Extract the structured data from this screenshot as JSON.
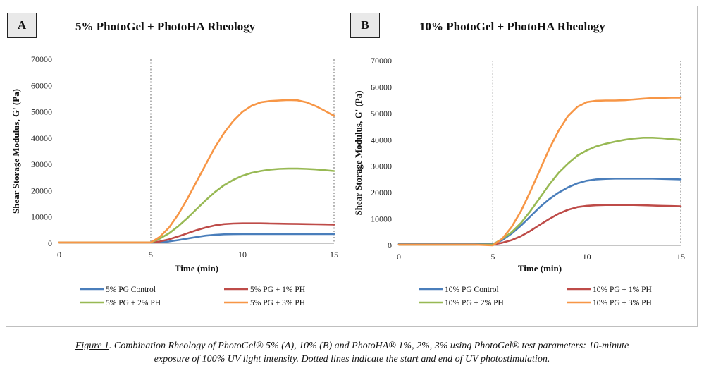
{
  "charts": [
    {
      "id": "A",
      "panel_label": "A",
      "title": "5% PhotoGel + PhotoHA Rheology"
    },
    {
      "id": "B",
      "panel_label": "B",
      "title": "10% PhotoGel + PhotoHA Rheology"
    }
  ],
  "caption": {
    "figure_label": "Figure 1",
    "text_line1": ". Combination Rheology of PhotoGel® 5% (A), 10% (B) and PhotoHA® 1%, 2%, 3% using PhotoGel® test parameters: 10-minute",
    "text_line2": "exposure of 100% UV light intensity. Dotted lines indicate the start and end of UV photostimulation."
  },
  "chart_data": [
    {
      "type": "line",
      "title": "5% PhotoGel + PhotoHA Rheology",
      "xlabel": "Time (min)",
      "ylabel": "Shear Storage Modulus, G' (Pa)",
      "xlim": [
        0,
        15
      ],
      "ylim": [
        0,
        70000
      ],
      "xticks": [
        0,
        5,
        10,
        15
      ],
      "yticks": [
        0,
        10000,
        20000,
        30000,
        40000,
        50000,
        60000,
        70000
      ],
      "vlines": [
        5,
        15
      ],
      "grid": false,
      "legend_position": "bottom",
      "x": [
        0,
        1,
        2,
        3,
        4,
        5,
        5.5,
        6,
        6.5,
        7,
        7.5,
        8,
        8.5,
        9,
        9.5,
        10,
        10.5,
        11,
        11.5,
        12,
        12.5,
        13,
        13.5,
        14,
        14.5,
        15
      ],
      "series": [
        {
          "name": "5% PG Control",
          "color": "#4a7ebb",
          "values": [
            300,
            300,
            300,
            300,
            300,
            300,
            400,
            700,
            1200,
            1800,
            2400,
            2900,
            3200,
            3400,
            3450,
            3500,
            3500,
            3500,
            3500,
            3500,
            3500,
            3500,
            3500,
            3500,
            3500,
            3500
          ]
        },
        {
          "name": "5% PG + 1% PH",
          "color": "#be4b48",
          "values": [
            300,
            300,
            300,
            300,
            300,
            300,
            700,
            1500,
            2600,
            3800,
            5000,
            6000,
            6800,
            7300,
            7500,
            7600,
            7600,
            7600,
            7500,
            7450,
            7400,
            7350,
            7300,
            7250,
            7200,
            7100
          ]
        },
        {
          "name": "5% PG + 2% PH",
          "color": "#98b954",
          "values": [
            300,
            300,
            300,
            300,
            300,
            300,
            1800,
            3800,
            6500,
            9600,
            13000,
            16400,
            19500,
            22100,
            24100,
            25700,
            26800,
            27500,
            28000,
            28300,
            28400,
            28400,
            28300,
            28100,
            27800,
            27500
          ]
        },
        {
          "name": "5% PG + 3% PH",
          "color": "#f79646",
          "values": [
            300,
            300,
            300,
            300,
            300,
            300,
            2500,
            6000,
            11000,
            17000,
            23500,
            30000,
            36500,
            42000,
            46500,
            50000,
            52300,
            53600,
            54100,
            54300,
            54500,
            54400,
            53600,
            52200,
            50400,
            48500
          ]
        }
      ]
    },
    {
      "type": "line",
      "title": "10% PhotoGel + PhotoHA Rheology",
      "xlabel": "Time (min)",
      "ylabel": "Shear Storage Modulus, G' (Pa)",
      "xlim": [
        0,
        15
      ],
      "ylim": [
        0,
        70000
      ],
      "xticks": [
        0,
        5,
        10,
        15
      ],
      "yticks": [
        0,
        10000,
        20000,
        30000,
        40000,
        50000,
        60000,
        70000
      ],
      "vlines": [
        5,
        15
      ],
      "grid": false,
      "legend_position": "bottom",
      "x": [
        0,
        1,
        2,
        3,
        4,
        5,
        5.5,
        6,
        6.5,
        7,
        7.5,
        8,
        8.5,
        9,
        9.5,
        10,
        10.5,
        11,
        11.5,
        12,
        12.5,
        13,
        13.5,
        14,
        14.5,
        15
      ],
      "series": [
        {
          "name": "10% PG Control",
          "color": "#4a7ebb",
          "values": [
            500,
            500,
            500,
            500,
            500,
            500,
            2000,
            4500,
            7500,
            11000,
            14500,
            17500,
            20000,
            22000,
            23500,
            24500,
            25000,
            25200,
            25300,
            25300,
            25300,
            25300,
            25300,
            25200,
            25100,
            25000
          ]
        },
        {
          "name": "10% PG + 1% PH",
          "color": "#be4b48",
          "values": [
            300,
            300,
            300,
            300,
            300,
            300,
            1000,
            2000,
            3500,
            5500,
            7800,
            10000,
            12000,
            13500,
            14500,
            15000,
            15200,
            15300,
            15300,
            15300,
            15300,
            15200,
            15100,
            15000,
            14900,
            14800
          ]
        },
        {
          "name": "10% PG + 2% PH",
          "color": "#98b954",
          "values": [
            300,
            300,
            300,
            300,
            300,
            300,
            2500,
            5000,
            8500,
            13000,
            18000,
            23000,
            27500,
            31000,
            34000,
            36000,
            37500,
            38500,
            39300,
            40000,
            40500,
            40800,
            40800,
            40600,
            40300,
            40000
          ]
        },
        {
          "name": "10% PG + 3% PH",
          "color": "#f79646",
          "values": [
            300,
            300,
            300,
            300,
            300,
            0,
            2500,
            7000,
            13000,
            20500,
            28500,
            36500,
            43500,
            49000,
            52500,
            54300,
            54800,
            54900,
            54900,
            55000,
            55300,
            55600,
            55800,
            55900,
            56000,
            56000
          ]
        }
      ]
    }
  ]
}
